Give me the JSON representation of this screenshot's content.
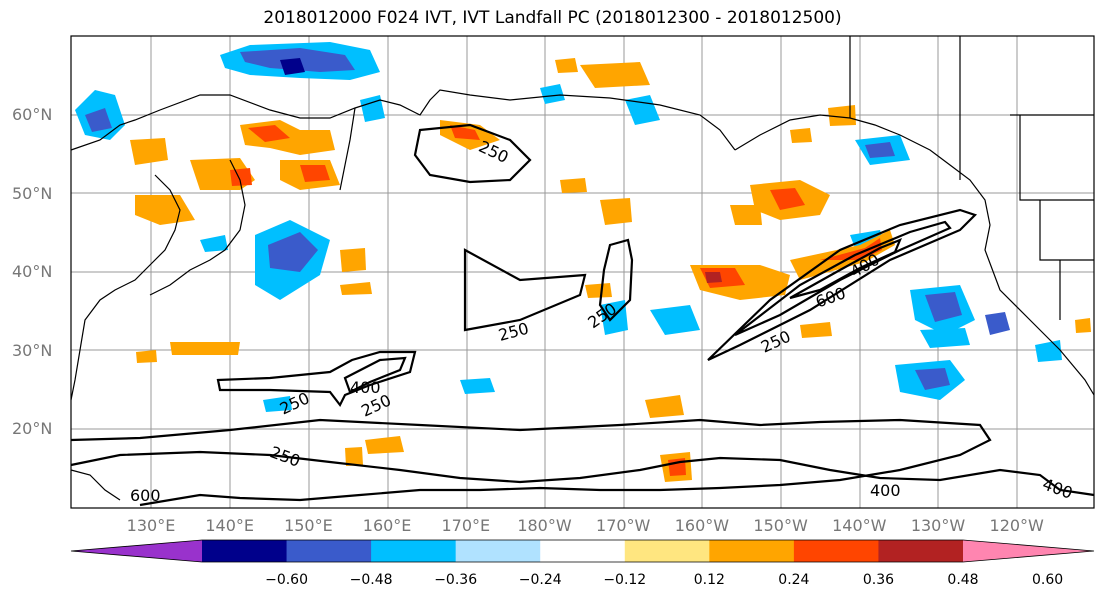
{
  "title": "2018012000 F024 IVT, IVT Landfall PC (2018012300 - 2018012500)",
  "lat_labels": [
    {
      "text": "60°N",
      "lat": 60
    },
    {
      "text": "50°N",
      "lat": 50
    },
    {
      "text": "40°N",
      "lat": 40
    },
    {
      "text": "30°N",
      "lat": 30
    },
    {
      "text": "20°N",
      "lat": 20
    }
  ],
  "lon_labels": [
    "130°E",
    "140°E",
    "150°E",
    "160°E",
    "170°E",
    "180°W",
    "170°W",
    "160°W",
    "150°W",
    "140°W",
    "130°W",
    "120°W"
  ],
  "contour_labels": [
    "250",
    "250",
    "250",
    "400",
    "250",
    "250",
    "600",
    "400",
    "250",
    "600",
    "400",
    "400",
    "250"
  ],
  "colorbar": {
    "labels": [
      "−0.60",
      "−0.48",
      "−0.36",
      "−0.24",
      "−0.12",
      "0.12",
      "0.24",
      "0.36",
      "0.48",
      "0.60"
    ],
    "colors": [
      "#9932cc",
      "#00008b",
      "#3a5bcb",
      "#00bfff",
      "#b0e2ff",
      "#ffffff",
      "#ffe680",
      "#ffa500",
      "#ff4500",
      "#b22222",
      "#ff85b0"
    ]
  }
}
